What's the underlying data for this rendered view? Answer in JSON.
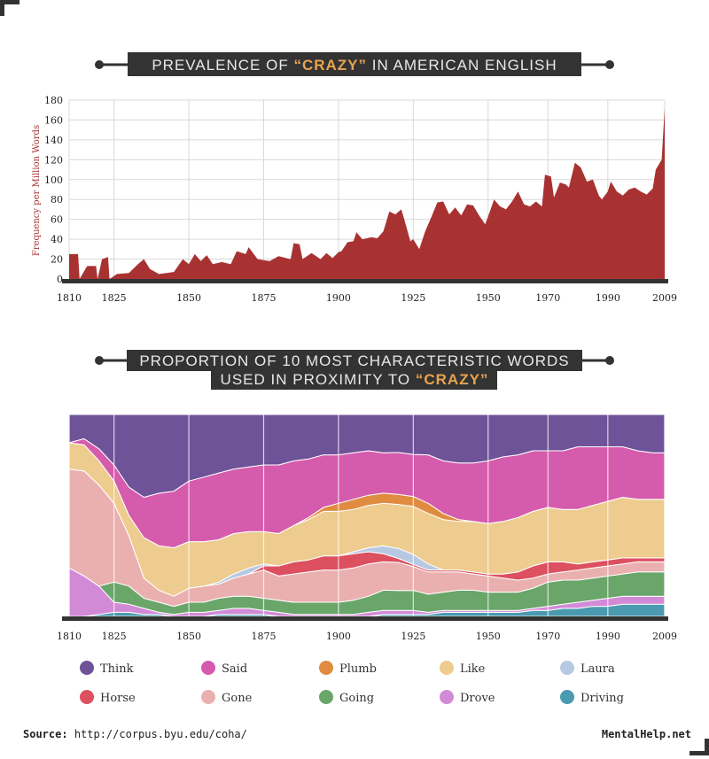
{
  "colors": {
    "dark": "#333333",
    "accent": "#e9a450",
    "crazy_area": "#a83232",
    "grid": "#d9d9d9"
  },
  "chart1": {
    "title_prefix": "PREVALENCE OF ",
    "title_highlight": "“CRAZY”",
    "title_suffix": " IN AMERICAN ENGLISH",
    "ylabel": "Frequency per Million Words"
  },
  "chart2": {
    "title_line1": "PROPORTION OF 10 MOST CHARACTERISTIC WORDS",
    "title_line2_prefix": "USED IN PROXIMITY TO ",
    "title_line2_highlight": "“CRAZY”"
  },
  "footer": {
    "source_label": "Source:",
    "source_url": "http://corpus.byu.edu/coha/",
    "brand": "MentalHelp.net"
  },
  "chart_data": [
    {
      "type": "area",
      "x_ticks": [
        1810,
        1825,
        1850,
        1875,
        1900,
        1925,
        1950,
        1970,
        1990,
        2009
      ],
      "y_ticks": [
        0,
        20,
        40,
        60,
        80,
        100,
        120,
        140,
        160,
        180
      ],
      "xlim": [
        1810,
        2009
      ],
      "ylim": [
        0,
        180
      ],
      "ylabel": "Frequency per Million Words",
      "grid": true,
      "series": [
        {
          "x": [
            1810,
            1811,
            1813,
            1813.5,
            1816,
            1819,
            1819.5,
            1821,
            1823,
            1823.5,
            1826,
            1830,
            1833,
            1835,
            1837,
            1840,
            1845,
            1848,
            1850,
            1852,
            1854,
            1856,
            1858,
            1861,
            1864,
            1866,
            1869,
            1870,
            1873,
            1875,
            1877,
            1880,
            1884,
            1885,
            1887,
            1888,
            1891,
            1894,
            1896,
            1898,
            1900,
            1901,
            1903,
            1905,
            1906,
            1908,
            1911,
            1913,
            1915,
            1917,
            1919,
            1921,
            1922,
            1924,
            1925,
            1927,
            1929,
            1931,
            1933,
            1935,
            1937,
            1939,
            1941,
            1943,
            1945,
            1947,
            1949,
            1950,
            1952,
            1954,
            1956,
            1958,
            1960,
            1962,
            1964,
            1966,
            1968,
            1969,
            1971,
            1972,
            1974,
            1976,
            1977,
            1979,
            1981,
            1983,
            1985,
            1987,
            1988,
            1990,
            1991,
            1993,
            1995,
            1997,
            1999,
            2001,
            2003,
            2005,
            2006,
            2008,
            2009
          ],
          "y": [
            25,
            25,
            25,
            0,
            13,
            13,
            0,
            20,
            22,
            0,
            5,
            6,
            15,
            20,
            10,
            5,
            7,
            20,
            15,
            25,
            18,
            24,
            15,
            17,
            15,
            28,
            25,
            32,
            20,
            19,
            18,
            23,
            20,
            36,
            35,
            20,
            26,
            20,
            26,
            21,
            27,
            28,
            37,
            38,
            47,
            40,
            42,
            41,
            48,
            68,
            65,
            70,
            60,
            38,
            40,
            30,
            48,
            62,
            77,
            78,
            65,
            72,
            64,
            75,
            74,
            64,
            55,
            63,
            80,
            73,
            70,
            78,
            88,
            75,
            73,
            78,
            73,
            105,
            103,
            82,
            97,
            95,
            92,
            117,
            112,
            98,
            100,
            84,
            80,
            88,
            98,
            88,
            84,
            90,
            92,
            88,
            85,
            91,
            110,
            120,
            172
          ]
        }
      ]
    },
    {
      "type": "area",
      "stacked": "normalized",
      "x_ticks": [
        1810,
        1825,
        1850,
        1875,
        1900,
        1925,
        1950,
        1970,
        1990,
        2009
      ],
      "x": [
        1810,
        1815,
        1820,
        1825,
        1830,
        1835,
        1840,
        1845,
        1850,
        1855,
        1860,
        1865,
        1870,
        1875,
        1880,
        1885,
        1890,
        1895,
        1900,
        1905,
        1910,
        1915,
        1920,
        1925,
        1930,
        1935,
        1940,
        1945,
        1950,
        1955,
        1960,
        1965,
        1970,
        1975,
        1980,
        1985,
        1990,
        1995,
        2000,
        2005,
        2009
      ],
      "grid": true,
      "series": [
        {
          "name": "Driving",
          "color": "#4a9ab0",
          "values": [
            0,
            0,
            1,
            2,
            2,
            1,
            1,
            0,
            0,
            0,
            1,
            1,
            1,
            1,
            0,
            0,
            0,
            0,
            0,
            0,
            0,
            1,
            1,
            1,
            1,
            2,
            2,
            2,
            2,
            2,
            2,
            3,
            3,
            4,
            4,
            5,
            5,
            6,
            6,
            6,
            6
          ]
        },
        {
          "name": "Drove",
          "color": "#d28ad6",
          "values": [
            24,
            20,
            14,
            5,
            4,
            3,
            1,
            1,
            2,
            2,
            2,
            3,
            3,
            2,
            2,
            1,
            1,
            1,
            1,
            1,
            2,
            2,
            2,
            2,
            1,
            1,
            1,
            1,
            1,
            1,
            1,
            1,
            2,
            2,
            3,
            3,
            4,
            4,
            4,
            4,
            4
          ]
        },
        {
          "name": "Going",
          "color": "#6aa56a",
          "values": [
            0,
            0,
            0,
            10,
            9,
            5,
            5,
            4,
            5,
            5,
            6,
            6,
            6,
            6,
            6,
            6,
            6,
            6,
            6,
            7,
            8,
            10,
            10,
            10,
            9,
            9,
            10,
            10,
            9,
            9,
            9,
            10,
            12,
            12,
            11,
            11,
            11,
            11,
            12,
            12,
            12
          ]
        },
        {
          "name": "Gone",
          "color": "#eab0b0",
          "values": [
            49,
            52,
            50,
            39,
            25,
            10,
            6,
            5,
            7,
            8,
            7,
            9,
            11,
            14,
            12,
            14,
            15,
            16,
            16,
            16,
            16,
            14,
            14,
            12,
            11,
            10,
            9,
            8,
            8,
            7,
            6,
            5,
            4,
            4,
            5,
            5,
            5,
            5,
            5,
            5,
            5
          ]
        },
        {
          "name": "Horse",
          "color": "#dc5060",
          "values": [
            0,
            0,
            0,
            0,
            0,
            0,
            0,
            0,
            0,
            0,
            0,
            0,
            0,
            2,
            5,
            6,
            6,
            7,
            7,
            7,
            6,
            4,
            2,
            1,
            1,
            1,
            1,
            1,
            1,
            2,
            4,
            6,
            6,
            5,
            3,
            3,
            3,
            3,
            2,
            2,
            2
          ]
        },
        {
          "name": "Laura",
          "color": "#b7c9e2",
          "values": [
            0,
            0,
            0,
            0,
            0,
            0,
            0,
            0,
            0,
            0,
            1,
            2,
            3,
            1,
            0,
            0,
            0,
            0,
            0,
            1,
            2,
            4,
            5,
            5,
            3,
            0,
            0,
            0,
            0,
            0,
            0,
            0,
            0,
            0,
            0,
            0,
            0,
            0,
            0,
            0,
            0
          ]
        },
        {
          "name": "Like",
          "color": "#eecb8e",
          "values": [
            13,
            13,
            12,
            11,
            10,
            20,
            22,
            24,
            23,
            22,
            21,
            20,
            18,
            16,
            16,
            18,
            20,
            22,
            22,
            21,
            21,
            21,
            22,
            24,
            25,
            25,
            24,
            25,
            25,
            26,
            27,
            27,
            27,
            26,
            27,
            28,
            29,
            30,
            29,
            29,
            29
          ]
        },
        {
          "name": "Plumb",
          "color": "#e08c40",
          "values": [
            0,
            0,
            0,
            0,
            0,
            0,
            0,
            0,
            0,
            0,
            0,
            0,
            0,
            0,
            0,
            0,
            1,
            2,
            4,
            5,
            5,
            5,
            5,
            5,
            5,
            3,
            1,
            0,
            0,
            0,
            0,
            0,
            0,
            0,
            0,
            0,
            0,
            0,
            0,
            0,
            0
          ]
        },
        {
          "name": "Said",
          "color": "#d55bad",
          "values": [
            0,
            3,
            6,
            8,
            14,
            20,
            26,
            28,
            30,
            32,
            33,
            32,
            32,
            33,
            34,
            32,
            29,
            26,
            24,
            23,
            22,
            20,
            21,
            21,
            24,
            26,
            28,
            29,
            31,
            32,
            31,
            30,
            28,
            29,
            31,
            29,
            27,
            25,
            24,
            23,
            23
          ]
        },
        {
          "name": "Think",
          "color": "#6e5398",
          "values": [
            14,
            12,
            17,
            25,
            36,
            41,
            39,
            38,
            33,
            31,
            29,
            27,
            26,
            25,
            25,
            23,
            22,
            20,
            20,
            19,
            18,
            19,
            19,
            20,
            20,
            23,
            24,
            24,
            23,
            21,
            20,
            18,
            18,
            18,
            16,
            16,
            16,
            16,
            18,
            19,
            19
          ]
        }
      ]
    }
  ],
  "legend": [
    {
      "name": "Think",
      "color": "#6e5398"
    },
    {
      "name": "Said",
      "color": "#d55bad"
    },
    {
      "name": "Plumb",
      "color": "#e08c40"
    },
    {
      "name": "Like",
      "color": "#eecb8e"
    },
    {
      "name": "Laura",
      "color": "#b7c9e2"
    },
    {
      "name": "Horse",
      "color": "#dc5060"
    },
    {
      "name": "Gone",
      "color": "#eab0b0"
    },
    {
      "name": "Going",
      "color": "#6aa56a"
    },
    {
      "name": "Drove",
      "color": "#d28ad6"
    },
    {
      "name": "Driving",
      "color": "#4a9ab0"
    }
  ]
}
